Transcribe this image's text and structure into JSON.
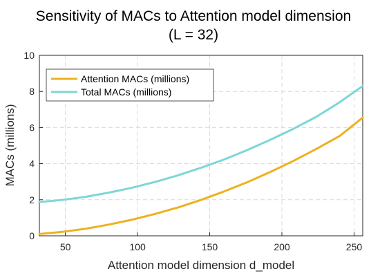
{
  "chart_data": {
    "type": "line",
    "title_line1": "Sensitivity of MACs to Attention model dimension",
    "title_line2": "(L = 32)",
    "xlabel": "Attention model dimension d_model",
    "ylabel": "MACs (millions)",
    "xlim": [
      32,
      256
    ],
    "ylim": [
      0,
      10
    ],
    "xticks": [
      50,
      100,
      150,
      200,
      250
    ],
    "yticks": [
      0,
      2,
      4,
      6,
      8,
      10
    ],
    "grid": true,
    "legend_position": "top-left",
    "series": [
      {
        "name": "Attention MACs (millions)",
        "color": "#EDB120",
        "x": [
          32,
          48,
          64,
          80,
          96,
          112,
          128,
          144,
          160,
          176,
          192,
          208,
          224,
          240,
          256
        ],
        "y": [
          0.1,
          0.22,
          0.39,
          0.62,
          0.89,
          1.21,
          1.57,
          1.99,
          2.46,
          2.97,
          3.54,
          4.15,
          4.82,
          5.53,
          6.55
        ]
      },
      {
        "name": "Total MACs (millions)",
        "color": "#7ED6D6",
        "x": [
          32,
          48,
          64,
          80,
          96,
          112,
          128,
          144,
          160,
          176,
          192,
          208,
          224,
          240,
          256
        ],
        "y": [
          1.87,
          1.99,
          2.16,
          2.39,
          2.66,
          2.98,
          3.35,
          3.77,
          4.23,
          4.75,
          5.32,
          5.93,
          6.6,
          7.4,
          8.3
        ]
      }
    ]
  }
}
